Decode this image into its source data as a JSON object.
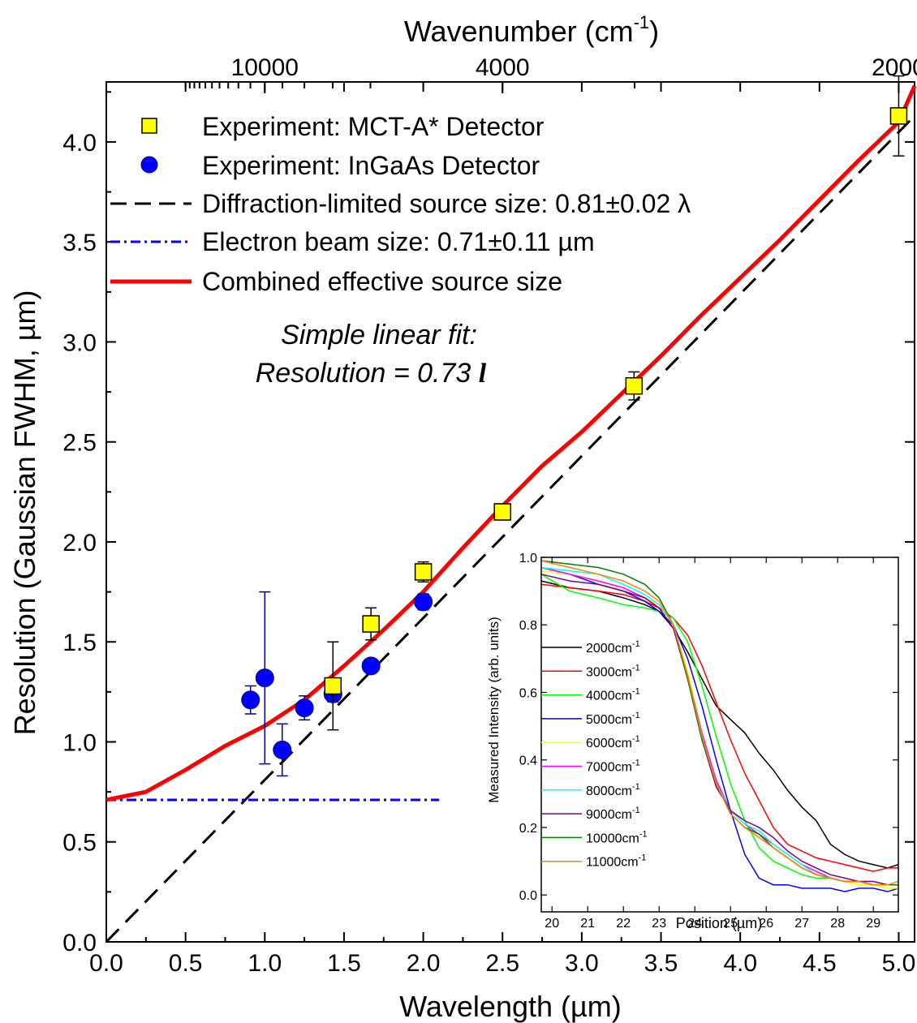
{
  "chart_data": [
    {
      "type": "scatter",
      "xlabel": "Wavelength (µm)",
      "ylabel": "Resolution (Gaussian FWHM, µm)",
      "top_xlabel": "Wavenumber (cm",
      "top_xlabel_sup": "-1",
      "top_xlabel_close": ")",
      "xlim": [
        0.0,
        5.1
      ],
      "ylim": [
        0.0,
        4.3
      ],
      "xticks": [
        "0.0",
        "0.5",
        "1.0",
        "1.5",
        "2.0",
        "2.5",
        "3.0",
        "3.5",
        "4.0",
        "4.5",
        "5.0"
      ],
      "yticks": [
        "0.0",
        "0.5",
        "1.0",
        "1.5",
        "2.0",
        "2.5",
        "3.0",
        "3.5",
        "4.0"
      ],
      "top_ticks": [
        {
          "wavenumber": 10000,
          "label": "10000"
        },
        {
          "wavenumber": 4000,
          "label": "4000"
        },
        {
          "wavenumber": 2000,
          "label": "2000"
        }
      ],
      "annotation": {
        "line1": "Simple linear fit:",
        "line2": "Resolution = 0.73 ",
        "symbol": "l"
      },
      "legend": [
        {
          "label": "Experiment: MCT-A* Detector",
          "marker": "square"
        },
        {
          "label": "Experiment: InGaAs Detector",
          "marker": "circle"
        },
        {
          "label": "Diffraction-limited source size: 0.81±0.02 λ",
          "marker": "dash"
        },
        {
          "label": "Electron beam size: 0.71±0.11 µm",
          "marker": "dashdot"
        },
        {
          "label": "Combined effective source size",
          "marker": "solid"
        }
      ],
      "colors": {
        "mct": "#ffff00",
        "ingaas": "#0000ff",
        "errorbar": "#00008b",
        "combined": "#ff0000",
        "diffraction": "#000000",
        "beam": "#0000ff"
      },
      "series": [
        {
          "name": "Experiment: MCT-A* Detector",
          "x": [
            1.43,
            1.67,
            2.0,
            2.5,
            3.33,
            5.0
          ],
          "y": [
            1.28,
            1.59,
            1.85,
            2.15,
            2.78,
            4.13
          ],
          "yerr": [
            0.22,
            0.08,
            0.05,
            0.04,
            0.07,
            0.2
          ]
        },
        {
          "name": "Experiment: InGaAs Detector",
          "x": [
            0.91,
            1.0,
            1.11,
            1.25,
            1.43,
            1.67,
            2.0
          ],
          "y": [
            1.21,
            1.32,
            0.96,
            1.17,
            1.24,
            1.38,
            1.7
          ],
          "yerr": [
            0.07,
            0.43,
            0.13,
            0.06,
            0.04,
            0.03,
            0.04
          ]
        },
        {
          "name": "Diffraction-limited source size: 0.81±0.02 λ",
          "x": [
            0.0,
            5.1
          ],
          "y": [
            0.0,
            4.13
          ]
        },
        {
          "name": "Electron beam size: 0.71±0.11 µm",
          "x": [
            0.0,
            2.1
          ],
          "y": [
            0.71,
            0.71
          ]
        },
        {
          "name": "Combined effective source size",
          "x": [
            0.0,
            0.25,
            0.5,
            0.75,
            1.0,
            1.25,
            1.5,
            1.75,
            2.0,
            2.25,
            2.5,
            2.75,
            3.0,
            3.25,
            3.5,
            3.75,
            4.0,
            4.25,
            4.5,
            4.75,
            5.0,
            5.1
          ],
          "y": [
            0.71,
            0.75,
            0.86,
            0.98,
            1.08,
            1.21,
            1.38,
            1.56,
            1.75,
            1.97,
            2.18,
            2.38,
            2.55,
            2.74,
            2.93,
            3.13,
            3.32,
            3.51,
            3.71,
            3.91,
            4.1,
            4.28
          ]
        }
      ]
    },
    {
      "type": "line",
      "xlabel": "Position (µm)",
      "ylabel": "Measured Intensity (arb. units)",
      "xlim": [
        19.7,
        29.7
      ],
      "ylim": [
        -0.05,
        1.0
      ],
      "xticks": [
        "20",
        "21",
        "22",
        "23",
        "24",
        "25",
        "26",
        "27",
        "28",
        "29"
      ],
      "yticks": [
        "0.0",
        "0.2",
        "0.4",
        "0.6",
        "0.8",
        "1.0"
      ],
      "legend_unit": "cm",
      "legend_sup": "-1",
      "series": [
        {
          "name": "2000",
          "color": "#000000",
          "x": [
            19.7,
            20.5,
            21.3,
            22.0,
            22.6,
            23.0,
            23.4,
            23.8,
            24.2,
            24.6,
            25.0,
            25.4,
            25.8,
            26.2,
            26.6,
            27.0,
            27.4,
            27.8,
            28.2,
            28.6,
            29.0,
            29.4,
            29.7
          ],
          "y": [
            0.93,
            0.91,
            0.9,
            0.88,
            0.86,
            0.84,
            0.79,
            0.72,
            0.64,
            0.56,
            0.52,
            0.48,
            0.42,
            0.37,
            0.31,
            0.26,
            0.22,
            0.15,
            0.12,
            0.1,
            0.09,
            0.08,
            0.09
          ]
        },
        {
          "name": "3000",
          "color": "#ff0000",
          "x": [
            19.7,
            20.5,
            21.3,
            22.0,
            22.6,
            23.0,
            23.4,
            23.8,
            24.2,
            24.6,
            25.0,
            25.4,
            25.8,
            26.2,
            26.6,
            27.0,
            27.4,
            27.8,
            28.2,
            28.6,
            29.0,
            29.4,
            29.7
          ],
          "y": [
            0.92,
            0.91,
            0.9,
            0.89,
            0.87,
            0.85,
            0.82,
            0.77,
            0.68,
            0.57,
            0.46,
            0.36,
            0.28,
            0.2,
            0.15,
            0.13,
            0.11,
            0.1,
            0.09,
            0.08,
            0.07,
            0.08,
            0.08
          ]
        },
        {
          "name": "4000",
          "color": "#00ff00",
          "x": [
            19.7,
            20.5,
            21.3,
            22.0,
            22.6,
            23.0,
            23.4,
            23.8,
            24.2,
            24.6,
            25.0,
            25.4,
            25.8,
            26.2,
            26.6,
            27.0,
            27.4,
            27.8,
            28.2,
            28.6,
            29.0,
            29.4,
            29.7
          ],
          "y": [
            0.95,
            0.9,
            0.88,
            0.86,
            0.85,
            0.84,
            0.82,
            0.75,
            0.62,
            0.47,
            0.33,
            0.22,
            0.14,
            0.1,
            0.08,
            0.06,
            0.05,
            0.05,
            0.04,
            0.04,
            0.04,
            0.03,
            0.03
          ]
        },
        {
          "name": "5000",
          "color": "#0000ff",
          "x": [
            19.7,
            20.5,
            21.3,
            22.0,
            22.6,
            23.0,
            23.4,
            23.8,
            24.2,
            24.6,
            25.0,
            25.4,
            25.8,
            26.2,
            26.6,
            27.0,
            27.4,
            27.8,
            28.2,
            28.6,
            29.0,
            29.4,
            29.7
          ],
          "y": [
            0.97,
            0.95,
            0.92,
            0.9,
            0.87,
            0.84,
            0.8,
            0.7,
            0.56,
            0.4,
            0.25,
            0.12,
            0.05,
            0.03,
            0.03,
            0.02,
            0.02,
            0.02,
            0.01,
            0.02,
            0.02,
            0.01,
            0.02
          ]
        },
        {
          "name": "6000",
          "color": "#ffff00",
          "x": [
            19.7,
            20.5,
            21.3,
            22.0,
            22.6,
            23.0,
            23.4,
            23.8,
            24.2,
            24.6,
            25.0,
            25.4,
            25.8,
            26.2,
            26.6,
            27.0,
            27.4,
            27.8,
            28.2,
            28.6,
            29.0,
            29.4,
            29.7
          ],
          "y": [
            0.96,
            0.95,
            0.93,
            0.91,
            0.88,
            0.86,
            0.8,
            0.66,
            0.48,
            0.33,
            0.24,
            0.2,
            0.17,
            0.14,
            0.11,
            0.08,
            0.06,
            0.05,
            0.04,
            0.03,
            0.03,
            0.02,
            0.02
          ]
        },
        {
          "name": "7000",
          "color": "#ff00ff",
          "x": [
            19.7,
            20.5,
            21.3,
            22.0,
            22.6,
            23.0,
            23.4,
            23.8,
            24.2,
            24.6,
            25.0,
            25.4,
            25.8,
            26.2,
            26.6,
            27.0,
            27.4,
            27.8,
            28.2,
            28.6,
            29.0,
            29.4,
            29.7
          ],
          "y": [
            0.97,
            0.95,
            0.93,
            0.91,
            0.88,
            0.85,
            0.79,
            0.65,
            0.48,
            0.34,
            0.25,
            0.21,
            0.18,
            0.15,
            0.12,
            0.09,
            0.07,
            0.05,
            0.04,
            0.04,
            0.03,
            0.03,
            0.03
          ]
        },
        {
          "name": "8000",
          "color": "#00ffff",
          "x": [
            19.7,
            20.5,
            21.3,
            22.0,
            22.6,
            23.0,
            23.4,
            23.8,
            24.2,
            24.6,
            25.0,
            25.4,
            25.8,
            26.2,
            26.6,
            27.0,
            27.4,
            27.8,
            28.2,
            28.6,
            29.0,
            29.4,
            29.7
          ],
          "y": [
            0.97,
            0.96,
            0.95,
            0.92,
            0.89,
            0.86,
            0.8,
            0.65,
            0.47,
            0.33,
            0.25,
            0.21,
            0.19,
            0.15,
            0.12,
            0.09,
            0.06,
            0.05,
            0.04,
            0.04,
            0.03,
            0.03,
            0.03
          ]
        },
        {
          "name": "9000",
          "color": "#800080",
          "x": [
            19.7,
            20.5,
            21.3,
            22.0,
            22.6,
            23.0,
            23.4,
            23.8,
            24.2,
            24.6,
            25.0,
            25.4,
            25.8,
            26.2,
            26.6,
            27.0,
            27.4,
            27.8,
            28.2,
            28.6,
            29.0,
            29.4,
            29.7
          ],
          "y": [
            0.95,
            0.93,
            0.92,
            0.9,
            0.88,
            0.85,
            0.79,
            0.64,
            0.46,
            0.32,
            0.25,
            0.22,
            0.2,
            0.17,
            0.13,
            0.1,
            0.08,
            0.06,
            0.05,
            0.04,
            0.04,
            0.03,
            0.03
          ]
        },
        {
          "name": "10000",
          "color": "#008000",
          "x": [
            19.7,
            20.5,
            21.3,
            22.0,
            22.6,
            23.0,
            23.4,
            23.8,
            24.2,
            24.6,
            25.0,
            25.4,
            25.8,
            26.2,
            26.6,
            27.0,
            27.4,
            27.8,
            28.2,
            28.6,
            29.0,
            29.4,
            29.7
          ],
          "y": [
            0.99,
            0.98,
            0.97,
            0.95,
            0.92,
            0.88,
            0.8,
            0.64,
            0.46,
            0.33,
            0.24,
            0.2,
            0.18,
            0.14,
            0.11,
            0.08,
            0.06,
            0.05,
            0.04,
            0.04,
            0.03,
            0.03,
            0.03
          ]
        },
        {
          "name": "11000",
          "color": "#ff8000",
          "x": [
            19.7,
            20.5,
            21.3,
            22.0,
            22.6,
            23.0,
            23.4,
            23.8,
            24.2,
            24.6,
            25.0,
            25.4,
            25.8,
            26.2,
            26.6,
            27.0,
            27.4,
            27.8,
            28.2,
            28.6,
            29.0,
            29.4,
            29.7
          ],
          "y": [
            0.99,
            0.97,
            0.95,
            0.93,
            0.9,
            0.87,
            0.8,
            0.65,
            0.47,
            0.33,
            0.24,
            0.2,
            0.17,
            0.14,
            0.11,
            0.08,
            0.06,
            0.05,
            0.04,
            0.04,
            0.03,
            0.03,
            0.04
          ]
        }
      ]
    }
  ]
}
